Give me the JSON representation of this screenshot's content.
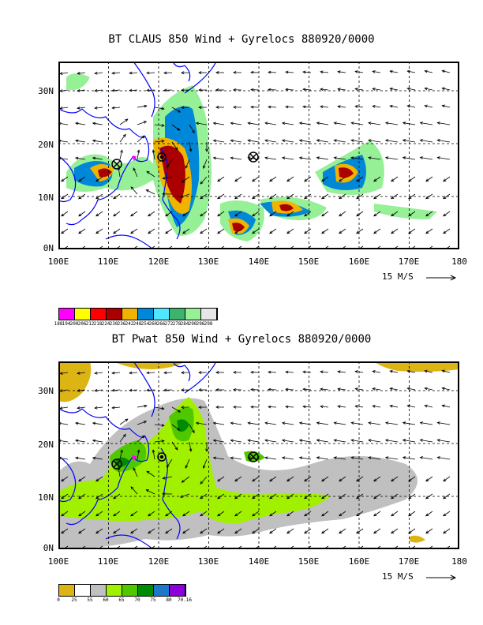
{
  "panels": [
    {
      "title": "BT CLAUS 850 Wind + Gyrelocs 880920/0000",
      "lat_labels": [
        "30N",
        "20N",
        "10N",
        "0N"
      ],
      "lon_labels": [
        "100E",
        "110E",
        "120E",
        "130E",
        "140E",
        "150E",
        "160E",
        "170E",
        "180"
      ],
      "scale_label": "15 M/S",
      "legend": {
        "colors": [
          "#ff00ff",
          "#ffff00",
          "#ff0000",
          "#aa0000",
          "#f0b400",
          "#0087d7",
          "#50e6ff",
          "#3cb46e",
          "#96f096",
          "#e6e6e6"
        ],
        "labels": [
          "188",
          "194",
          "200",
          "206",
          "212",
          "218",
          "224",
          "230",
          "236",
          "242",
          "248",
          "254",
          "260",
          "266",
          "272",
          "278",
          "284",
          "290",
          "296",
          "298"
        ]
      }
    },
    {
      "title": "BT Pwat 850 Wind + Gyrelocs 880920/0000",
      "lat_labels": [
        "30N",
        "20N",
        "10N",
        "0N"
      ],
      "lon_labels": [
        "100E",
        "110E",
        "120E",
        "130E",
        "140E",
        "150E",
        "160E",
        "170E",
        "180"
      ],
      "scale_label": "15 M/S",
      "legend": {
        "colors": [
          "#dcb414",
          "#ffffff",
          "#c0c0c0",
          "#a0f000",
          "#50c800",
          "#008c00",
          "#1e78c8",
          "#8c00dc"
        ],
        "labels": [
          "0",
          "25",
          "55",
          "60",
          "65",
          "70",
          "75",
          "80",
          "70.16"
        ]
      }
    }
  ],
  "colors": {
    "coast": "#0000ff",
    "frame": "#000000",
    "triangle": "#ff00ff"
  }
}
